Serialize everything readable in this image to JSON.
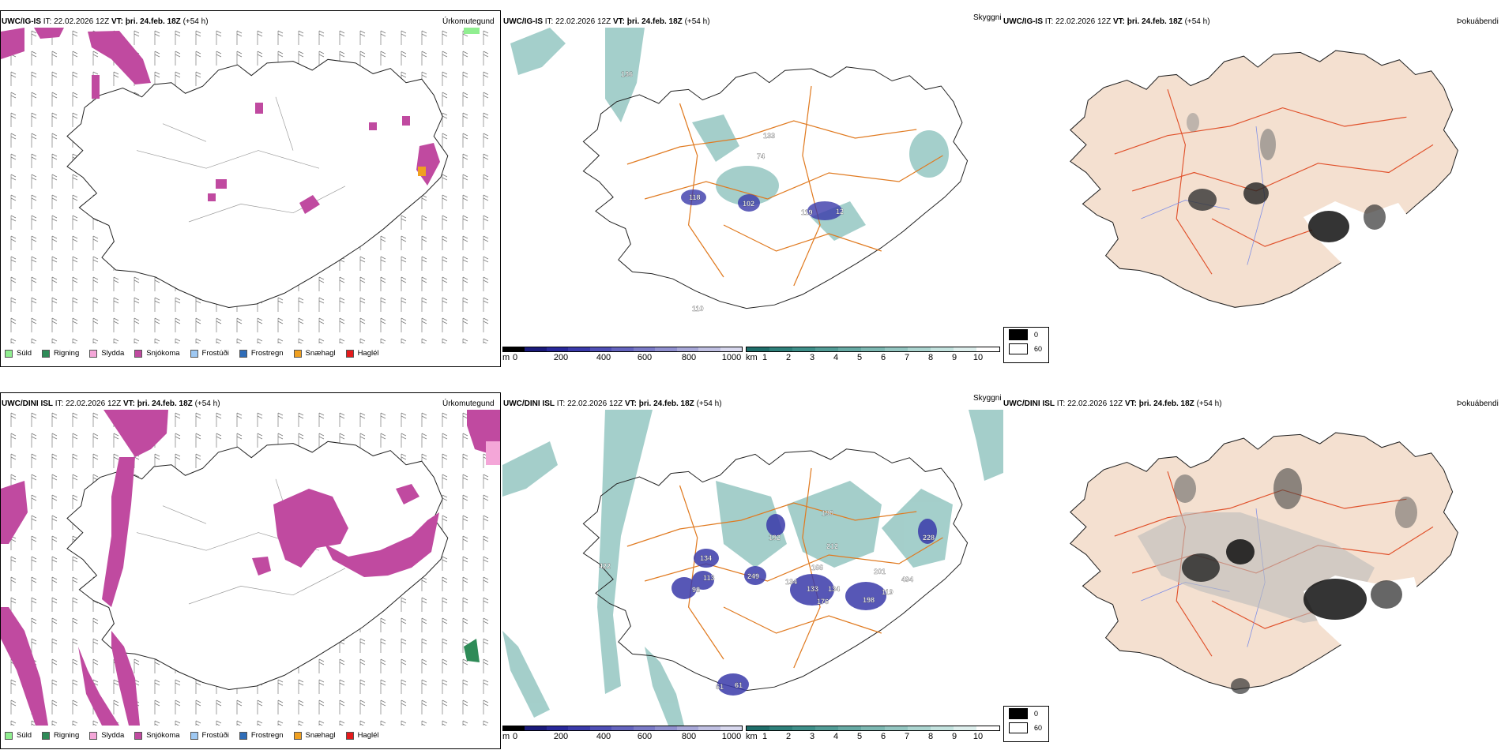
{
  "rows": [
    {
      "id": "top",
      "precip": {
        "model": "UWC/IG-IS",
        "it_label": "IT:",
        "it": "22.02.2026 12Z",
        "vt_label": "VT:",
        "vt": "þri. 24.feb. 18Z",
        "lead": "(+54 h)",
        "type_label": "Úrkomutegund"
      },
      "cloud": {
        "model": "UWC/IG-IS",
        "it_label": "IT:",
        "it": "22.02.2026 12Z",
        "vt_label": "VT:",
        "vt": "þri. 24.feb. 18Z",
        "lead": "(+54 h)",
        "type_label": "Skyggni",
        "labels": [
          "136",
          "133",
          "74",
          "118",
          "102",
          "119",
          "12",
          "110"
        ]
      },
      "fog": {
        "model": "UWC/IG-IS",
        "it_label": "IT:",
        "it": "22.02.2026 12Z",
        "vt_label": "VT:",
        "vt": "þri. 24.feb. 18Z",
        "lead": "(+54 h)",
        "type_label": "Þokuábendi"
      }
    },
    {
      "id": "bottom",
      "precip": {
        "model": "UWC/DINI ISL",
        "it_label": "IT:",
        "it": "22.02.2026 12Z",
        "vt_label": "VT:",
        "vt": "þri. 24.feb. 18Z",
        "lead": "(+54 h)",
        "type_label": "Úrkomutegund"
      },
      "cloud": {
        "model": "UWC/DINI ISL",
        "it_label": "IT:",
        "it": "22.02.2026 12Z",
        "vt_label": "VT:",
        "vt": "þri. 24.feb. 18Z",
        "lead": "(+54 h)",
        "type_label": "Skyggni",
        "labels": [
          "422",
          "134",
          "113",
          "98",
          "249",
          "192",
          "190",
          "212",
          "166",
          "134",
          "133",
          "134",
          "176",
          "201",
          "494",
          "198",
          "119",
          "228",
          "61",
          "61"
        ]
      },
      "fog": {
        "model": "UWC/DINI ISL",
        "it_label": "IT:",
        "it": "22.02.2026 12Z",
        "vt_label": "VT:",
        "vt": "þri. 24.feb. 18Z",
        "lead": "(+54 h)",
        "type_label": "Þokuábendi"
      }
    }
  ],
  "precip_legend": [
    {
      "label": "Súld",
      "color": "#90ee90"
    },
    {
      "label": "Rigning",
      "color": "#2e8b57"
    },
    {
      "label": "Slydda",
      "color": "#f4a6d8"
    },
    {
      "label": "Snjókoma",
      "color": "#c04aa0"
    },
    {
      "label": "Frostúði",
      "color": "#9ec8f2"
    },
    {
      "label": "Frostregn",
      "color": "#2f6db8"
    },
    {
      "label": "Snæhagl",
      "color": "#f0a020"
    },
    {
      "label": "Haglél",
      "color": "#e41a1c"
    }
  ],
  "height_scale": {
    "unit": "m",
    "ticks": [
      "0",
      "200",
      "400",
      "600",
      "800",
      "1000"
    ],
    "colors": [
      "#000000",
      "#1a1a7a",
      "#28289a",
      "#3a3aaa",
      "#4f4fb5",
      "#6464be",
      "#7a7ac6",
      "#9090cf",
      "#a8a8d8",
      "#c0c0e2",
      "#d8d8ee"
    ]
  },
  "vis_scale": {
    "unit": "km",
    "ticks": [
      "1",
      "2",
      "3",
      "4",
      "5",
      "6",
      "7",
      "8",
      "9",
      "10"
    ],
    "colors": [
      "#1f6e6a",
      "#2e807a",
      "#3e8f89",
      "#529c96",
      "#67aaa4",
      "#7db8b2",
      "#94c6c1",
      "#acd5d0",
      "#c4e3df",
      "#deefed",
      "#ffffff"
    ]
  },
  "shade_legend": [
    {
      "label": "0",
      "color": "#000000"
    },
    {
      "label": "60",
      "color": "#ffffff"
    }
  ]
}
